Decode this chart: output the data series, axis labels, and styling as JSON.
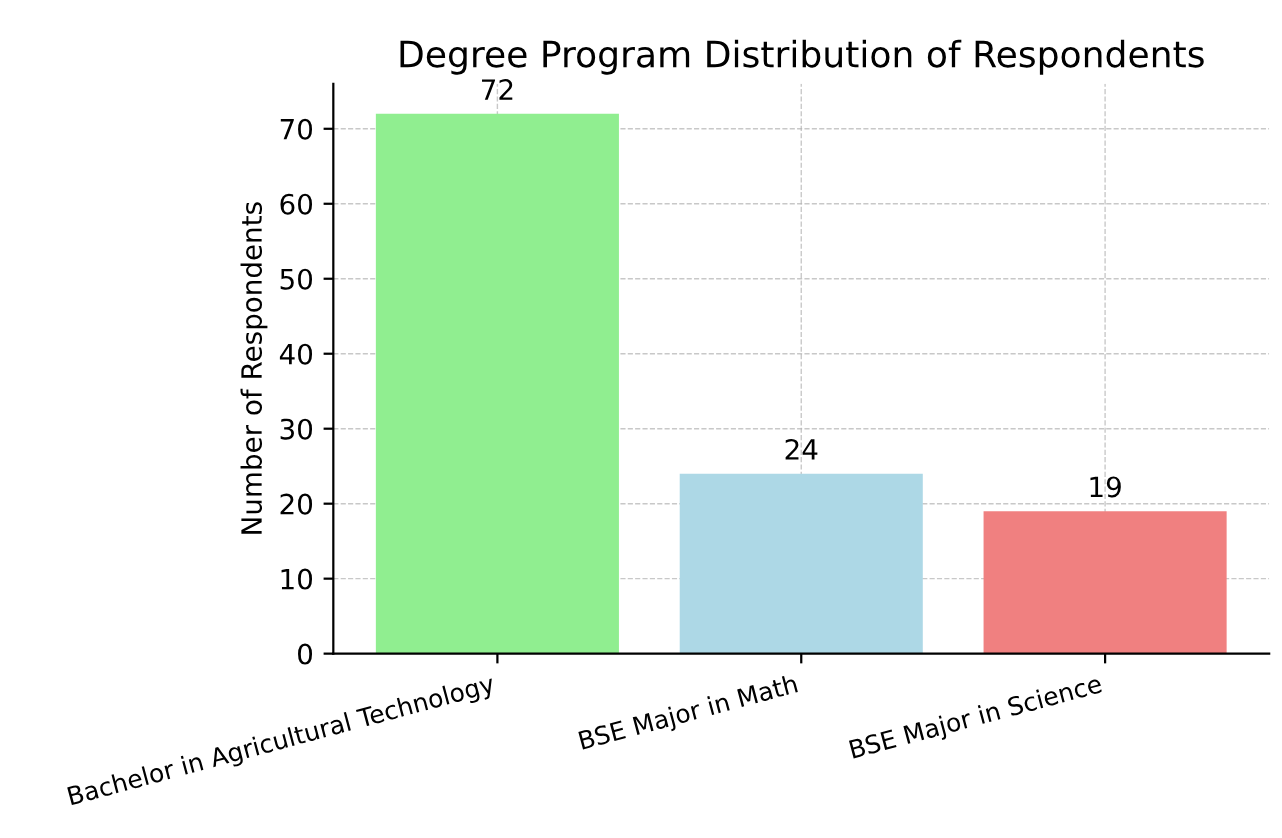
{
  "chart_data": {
    "type": "bar",
    "title": "Degree Program Distribution of Respondents",
    "ylabel": "Number of Respondents",
    "categories": [
      "Bachelor in Agricultural Technology",
      "BSE Major in Math",
      "BSE Major in Science"
    ],
    "values": [
      72,
      24,
      19
    ],
    "colors": [
      "#90ee90",
      "#add8e6",
      "#f08080"
    ],
    "ylim": [
      0,
      76
    ],
    "yticks": [
      0,
      10,
      20,
      30,
      40,
      50,
      60,
      70
    ],
    "grid": true,
    "data_labels": true
  }
}
